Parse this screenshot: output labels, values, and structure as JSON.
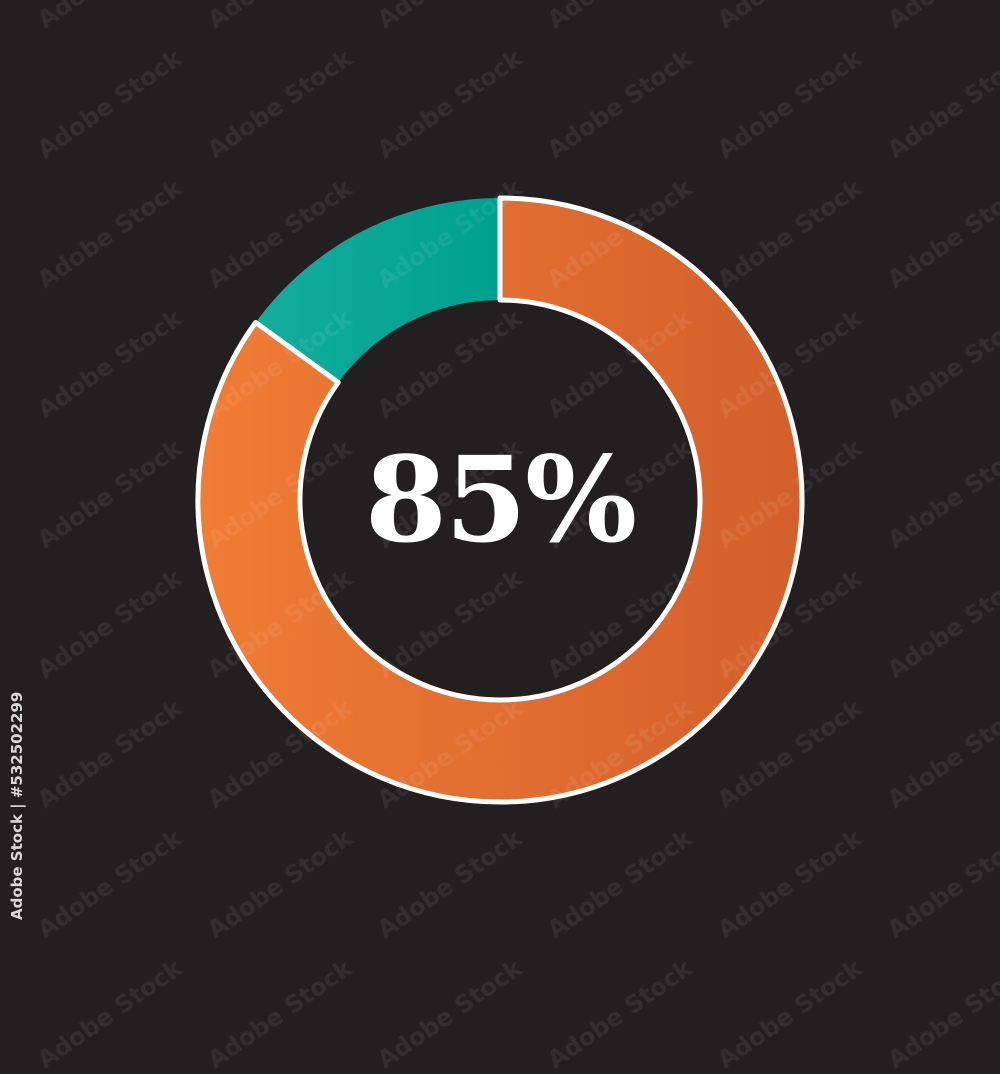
{
  "chart_data": {
    "type": "pie",
    "variant": "donut",
    "values": [
      85,
      15
    ],
    "colors": [
      "#e56f30",
      "#07a593"
    ],
    "center_label": "85%"
  },
  "side_text": "Adobe Stock | #532502299",
  "watermark": "Adobe Stock",
  "background": "#231f20"
}
